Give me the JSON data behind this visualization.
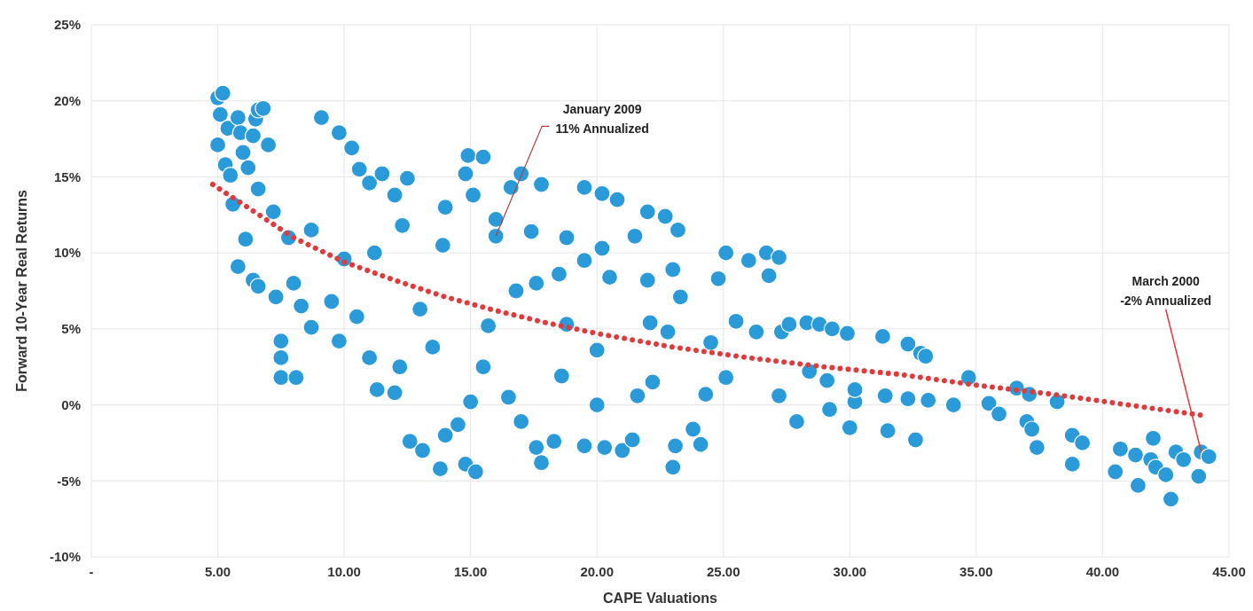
{
  "chart_data": {
    "type": "scatter",
    "xlabel": "CAPE Valuations",
    "ylabel": "Forward 10-Year Real Returns",
    "xlim": [
      0,
      45
    ],
    "ylim": [
      -10,
      25
    ],
    "xticks": [
      {
        "value": 0,
        "label": "-"
      },
      {
        "value": 5,
        "label": "5.00"
      },
      {
        "value": 10,
        "label": "10.00"
      },
      {
        "value": 15,
        "label": "15.00"
      },
      {
        "value": 20,
        "label": "20.00"
      },
      {
        "value": 25,
        "label": "25.00"
      },
      {
        "value": 30,
        "label": "30.00"
      },
      {
        "value": 35,
        "label": "35.00"
      },
      {
        "value": 40,
        "label": "40.00"
      },
      {
        "value": 45,
        "label": "45.00"
      }
    ],
    "yticks": [
      {
        "value": -10,
        "label": "-10%"
      },
      {
        "value": -5,
        "label": "-5%"
      },
      {
        "value": 0,
        "label": "0%"
      },
      {
        "value": 5,
        "label": "5%"
      },
      {
        "value": 10,
        "label": "10%"
      },
      {
        "value": 15,
        "label": "15%"
      },
      {
        "value": 20,
        "label": "20%"
      },
      {
        "value": 25,
        "label": "25%"
      }
    ],
    "grid": true,
    "series": [
      {
        "color": "#2a9bd8",
        "marker": "circle",
        "x": [
          16.0,
          5.0,
          5.0,
          5.2,
          5.1,
          5.3,
          5.4,
          5.5,
          5.6,
          5.8,
          5.9,
          6.0,
          6.2,
          6.4,
          6.5,
          6.6,
          6.8,
          7.0,
          6.6,
          6.1,
          5.8,
          6.4,
          6.6,
          7.3,
          7.5,
          7.5,
          7.5,
          8.1,
          7.2,
          7.8,
          8.0,
          8.3,
          8.7,
          8.7,
          9.1,
          9.8,
          10.3,
          10.6,
          11.0,
          11.5,
          12.0,
          12.5,
          12.3,
          11.2,
          10.0,
          9.5,
          9.8,
          10.5,
          11.0,
          11.3,
          12.2,
          12.0,
          12.6,
          13.1,
          13.5,
          13.0,
          13.9,
          14.0,
          14.8,
          14.9,
          15.5,
          15.1,
          13.8,
          14.0,
          14.5,
          14.8,
          15.2,
          15.0,
          15.5,
          15.7,
          16.0,
          16.6,
          17.0,
          17.8,
          17.4,
          17.6,
          16.8,
          16.5,
          17.0,
          17.6,
          17.8,
          18.3,
          18.6,
          18.8,
          18.5,
          18.8,
          19.5,
          20.2,
          20.8,
          19.5,
          20.2,
          20.5,
          20.0,
          20.0,
          19.5,
          20.3,
          21.0,
          21.4,
          21.6,
          22.2,
          22.1,
          22.0,
          21.5,
          22.0,
          22.7,
          23.2,
          23.0,
          23.3,
          22.8,
          23.1,
          23.0,
          23.8,
          24.1,
          24.3,
          25.1,
          24.5,
          24.8,
          25.1,
          26.0,
          26.7,
          27.2,
          26.8,
          25.5,
          26.3,
          27.3,
          27.6,
          28.3,
          28.8,
          29.3,
          29.9,
          31.3,
          32.3,
          32.8,
          33.0,
          34.7,
          36.6,
          37.1,
          38.2,
          27.2,
          27.9,
          28.4,
          29.1,
          29.2,
          30.0,
          30.2,
          30.2,
          31.4,
          31.5,
          32.3,
          32.6,
          33.1,
          34.1,
          35.5,
          35.9,
          37.0,
          37.2,
          37.4,
          38.8,
          38.8,
          39.2,
          40.5,
          40.7,
          41.3,
          41.4,
          41.9,
          42.0,
          42.1,
          42.5,
          42.7,
          42.9,
          43.2,
          43.9,
          43.8,
          44.2
        ],
        "values": [
          11.1,
          17.1,
          20.2,
          20.5,
          19.1,
          15.8,
          18.2,
          15.1,
          13.2,
          18.9,
          17.9,
          16.6,
          15.6,
          17.7,
          18.8,
          19.4,
          19.5,
          17.1,
          14.2,
          10.9,
          9.1,
          8.2,
          7.8,
          7.1,
          4.2,
          3.1,
          1.8,
          1.8,
          12.7,
          11.0,
          8.0,
          6.5,
          5.1,
          11.5,
          18.9,
          17.9,
          16.9,
          15.5,
          14.6,
          15.2,
          13.8,
          14.9,
          11.8,
          10.0,
          9.6,
          6.8,
          4.2,
          5.8,
          3.1,
          1.0,
          2.5,
          0.8,
          -2.4,
          -3.0,
          3.8,
          6.3,
          10.5,
          13.0,
          15.2,
          16.4,
          16.3,
          13.8,
          -4.2,
          -2.0,
          -1.3,
          -3.9,
          -4.4,
          0.2,
          2.5,
          5.2,
          12.2,
          14.3,
          15.2,
          14.5,
          11.4,
          8.0,
          7.5,
          0.5,
          -1.1,
          -2.8,
          -3.8,
          -2.4,
          1.9,
          5.3,
          8.6,
          11.0,
          14.3,
          13.9,
          13.5,
          9.5,
          10.3,
          8.4,
          3.6,
          0.0,
          -2.7,
          -2.8,
          -3.0,
          -2.3,
          0.6,
          1.5,
          5.4,
          8.2,
          11.1,
          12.7,
          12.4,
          11.5,
          8.9,
          7.1,
          4.8,
          -2.7,
          -4.1,
          -1.6,
          -2.6,
          0.7,
          1.8,
          4.1,
          8.3,
          10.0,
          9.5,
          10.0,
          9.7,
          8.5,
          5.5,
          4.8,
          4.8,
          5.3,
          5.4,
          5.3,
          5.0,
          4.7,
          4.5,
          4.0,
          3.4,
          3.2,
          1.8,
          1.1,
          0.7,
          0.2,
          0.6,
          -1.1,
          2.2,
          1.6,
          -0.3,
          -1.5,
          0.2,
          1.0,
          0.6,
          -1.7,
          0.4,
          -2.3,
          0.3,
          0.0,
          0.1,
          -0.6,
          -1.1,
          -1.6,
          -2.8,
          -2.0,
          -3.9,
          -2.5,
          -4.4,
          -2.9,
          -3.3,
          -5.3,
          -3.6,
          -2.2,
          -4.1,
          -4.6,
          -6.2,
          -3.1,
          -3.6,
          -3.1,
          -4.7,
          -3.4
        ]
      },
      {
        "type": "line",
        "color": "#e03a3a",
        "line_style": "dotted",
        "marker": "none",
        "x": [
          4.8,
          6,
          8,
          10,
          12,
          14,
          16,
          18,
          20,
          23,
          26,
          29,
          32,
          35,
          38,
          41,
          44
        ],
        "values": [
          14.5,
          13.2,
          11.0,
          9.4,
          8.2,
          7.1,
          6.2,
          5.4,
          4.7,
          3.8,
          3.1,
          2.5,
          2.0,
          1.3,
          0.7,
          0.0,
          -0.7
        ]
      }
    ],
    "annotations": [
      {
        "text": "January 2009\n11% Annualized",
        "x": 16.0,
        "y": 11.1
      },
      {
        "text": "March 2000\n-2% Annualized",
        "x": 43.9,
        "y": -3.1
      }
    ]
  }
}
